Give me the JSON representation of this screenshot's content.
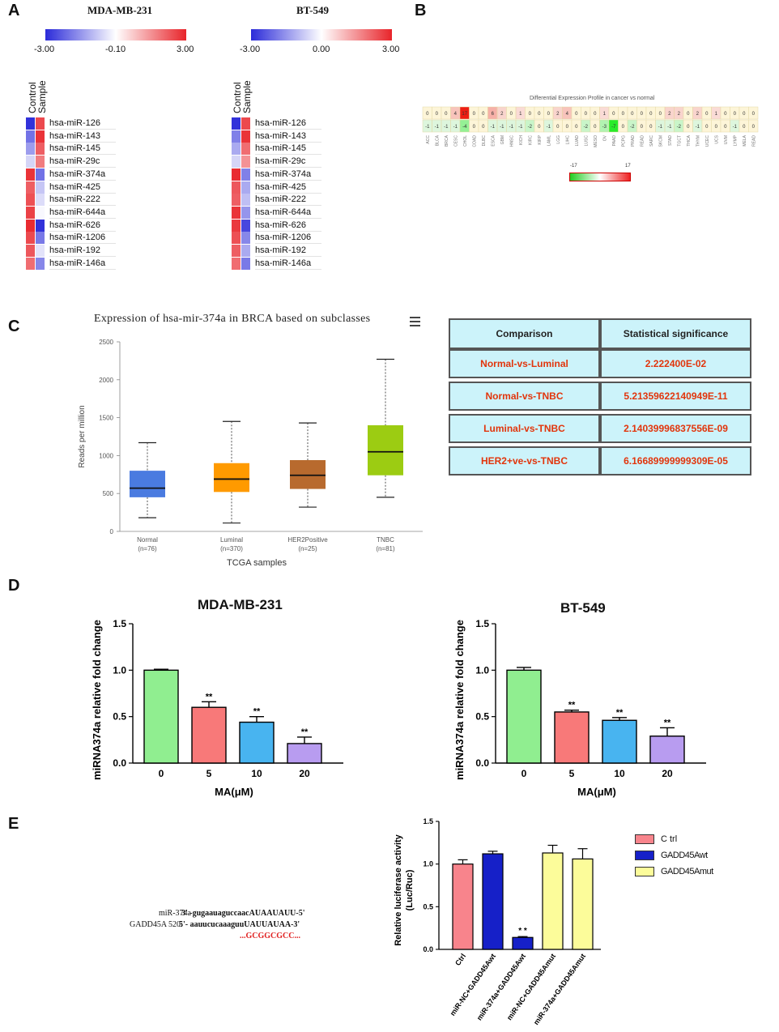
{
  "panels": {
    "A": "A",
    "B": "B",
    "C": "C",
    "D": "D",
    "E": "E"
  },
  "colors": {
    "heat_blue": "#2b2bd9",
    "heat_red": "#e8242a",
    "box_normal": "#4a7be0",
    "box_luminal": "#ff9a00",
    "box_her2": "#b86a2e",
    "box_tnbc": "#9ccc12",
    "bar_ctrl": "#90ee90",
    "bar_5": "#f87979",
    "bar_10": "#48b4f0",
    "bar_20": "#b89cf0",
    "e_ctrl": "#f8848c",
    "e_wt": "#1620c8",
    "e_mut": "#fcfc9a"
  },
  "heatmapA": {
    "left_title": "MDA-MB-231",
    "right_title": "BT-549",
    "left_scale": [
      "-3.00",
      "-0.10",
      "3.00"
    ],
    "right_scale": [
      "-3.00",
      "0.00",
      "3.00"
    ],
    "col_labels": [
      "Control",
      "Sample"
    ],
    "rows": [
      "hsa-miR-126",
      "hsa-miR-143",
      "hsa-miR-145",
      "hsa-miR-29c",
      "hsa-miR-374a",
      "hsa-miR-425",
      "hsa-miR-222",
      "hsa-miR-644a",
      "hsa-miR-626",
      "hsa-miR-1206",
      "hsa-miR-192",
      "hsa-miR-146a"
    ],
    "left_values": [
      [
        -2.9,
        2.5
      ],
      [
        -2.0,
        2.8
      ],
      [
        -1.4,
        2.2
      ],
      [
        -0.6,
        1.8
      ],
      [
        2.8,
        -2.0
      ],
      [
        2.2,
        -0.8
      ],
      [
        2.4,
        -0.5
      ],
      [
        2.6,
        -0.1
      ],
      [
        2.9,
        -2.9
      ],
      [
        2.5,
        -1.9
      ],
      [
        2.3,
        -0.4
      ],
      [
        2.0,
        -1.7
      ]
    ],
    "right_values": [
      [
        -2.9,
        2.5
      ],
      [
        -1.8,
        2.8
      ],
      [
        -1.2,
        2.0
      ],
      [
        -0.6,
        1.5
      ],
      [
        2.9,
        -1.8
      ],
      [
        2.3,
        -1.2
      ],
      [
        2.2,
        -0.9
      ],
      [
        2.8,
        -1.5
      ],
      [
        2.7,
        -2.6
      ],
      [
        2.4,
        -1.7
      ],
      [
        2.2,
        -1.2
      ],
      [
        2.0,
        -1.9
      ]
    ]
  },
  "panelB": {
    "title": "Differential Expression Profile in cancer vs normal",
    "row1": [
      "0",
      "0",
      "0",
      "4",
      "17",
      "0",
      "0",
      "6",
      "2",
      "0",
      "1",
      "0",
      "0",
      "0",
      "2",
      "4",
      "0",
      "0",
      "0",
      "1",
      "0",
      "0",
      "0",
      "0",
      "0",
      "0",
      "2",
      "2",
      "0",
      "2",
      "0",
      "1",
      "0",
      "0",
      "0",
      "0"
    ],
    "row2": [
      "-1",
      "-1",
      "-1",
      "-1",
      "-4",
      "0",
      "0",
      "-1",
      "-1",
      "-1",
      "-1",
      "-2",
      "0",
      "-1",
      "0",
      "0",
      "0",
      "-2",
      "0",
      "-3",
      "-7",
      "0",
      "-2",
      "0",
      "0",
      "-1",
      "-1",
      "-2",
      "0",
      "-1",
      "0",
      "0",
      "0",
      "-1",
      "0",
      "0"
    ],
    "cancers": [
      "ACC",
      "BLCA",
      "BRCA",
      "CESC",
      "CHOL",
      "COAD",
      "DLBC",
      "ESCA",
      "GBM",
      "HNSC",
      "KICH",
      "KIRC",
      "KIRP",
      "LAML",
      "LGG",
      "LIHC",
      "LUAD",
      "LUSC",
      "MESO",
      "OV",
      "PAAD",
      "PCPG",
      "PRAD",
      "READ",
      "SARC",
      "SKCM",
      "STAD",
      "TGCT",
      "THCA",
      "THYM",
      "UCEC",
      "UCS",
      "UVM",
      "LYMP",
      "MELA",
      "READ"
    ],
    "scale_min": "-17",
    "scale_max": "17"
  },
  "panelC": {
    "title": "Expression of hsa-mir-374a in BRCA based on subclasses",
    "menu_icon": "hamburger-menu-icon",
    "ylabel": "Reads per million",
    "xlabel": "TCGA samples",
    "yticks": [
      "0",
      "500",
      "1000",
      "1500",
      "2000",
      "2500"
    ],
    "groups": [
      "Normal",
      "Luminal",
      "HER2Positive",
      "TNBC"
    ],
    "counts": [
      "(n=76)",
      "(n=370)",
      "(n=25)",
      "(n=81)"
    ]
  },
  "stats": {
    "headers": [
      "Comparison",
      "Statistical significance"
    ],
    "rows": [
      [
        "Normal-vs-Luminal",
        "2.222400E-02"
      ],
      [
        "Normal-vs-TNBC",
        "5.21359622140949E-11"
      ],
      [
        "Luminal-vs-TNBC",
        "2.14039996837556E-09"
      ],
      [
        "HER2+ve-vs-TNBC",
        "6.16689999999309E-05"
      ]
    ]
  },
  "panelD": {
    "left_title": "MDA-MB-231",
    "right_title": "BT-549",
    "ylabel": "miRNA374a relative fold change",
    "xlabel": "MA(μM)",
    "yticks": [
      "0.0",
      "0.5",
      "1.0",
      "1.5"
    ],
    "categories": [
      "0",
      "5",
      "10",
      "20"
    ],
    "sig": "**"
  },
  "panelE": {
    "seq_line1_label": "miR-374a",
    "seq_line1": "3' -gugaauaguccaacAUAAUAUU-5'",
    "seq_line2_label": "GADD45A 520:",
    "seq_line2": "5'- aauucucaaaguuUAUUAUAA-3'",
    "seq_line3": "...GCGGCGCC...",
    "ylabel1": "Relative luciferase activity",
    "ylabel2": "(Luc/Ruc)",
    "yticks": [
      "0.0",
      "0.5",
      "1.0",
      "1.5"
    ],
    "categories": [
      "Ctrl",
      "miR-NC+GADD45Awt",
      "miR-374a+GADD45Awt",
      "miR-NC+GADD45Amut",
      "miR-374a+GADD45Amut"
    ],
    "legend": [
      "C trl",
      "GADD45Awt",
      "GADD45Amut"
    ],
    "sig": "* *"
  },
  "chart_data": [
    {
      "type": "box",
      "title": "Expression of hsa-mir-374a in BRCA based on subclasses",
      "xlabel": "TCGA samples",
      "ylabel": "Reads per million",
      "ylim": [
        0,
        2500
      ],
      "categories": [
        "Normal",
        "Luminal",
        "HER2Positive",
        "TNBC"
      ],
      "series": [
        {
          "name": "Normal",
          "min": 180,
          "q1": 450,
          "median": 570,
          "q3": 800,
          "max": 1170
        },
        {
          "name": "Luminal",
          "min": 110,
          "q1": 520,
          "median": 690,
          "q3": 900,
          "max": 1450
        },
        {
          "name": "HER2Positive",
          "min": 320,
          "q1": 560,
          "median": 740,
          "q3": 940,
          "max": 1430
        },
        {
          "name": "TNBC",
          "min": 450,
          "q1": 740,
          "median": 1050,
          "q3": 1400,
          "max": 2270
        }
      ]
    },
    {
      "type": "bar",
      "title": "MDA-MB-231",
      "xlabel": "MA(μM)",
      "ylabel": "miRNA374a relative fold change",
      "ylim": [
        0,
        1.5
      ],
      "categories": [
        "0",
        "5",
        "10",
        "20"
      ],
      "values": [
        1.0,
        0.6,
        0.44,
        0.21
      ],
      "errors": [
        0.01,
        0.06,
        0.06,
        0.07
      ]
    },
    {
      "type": "bar",
      "title": "BT-549",
      "xlabel": "MA(μM)",
      "ylabel": "miRNA374a relative fold change",
      "ylim": [
        0,
        1.5
      ],
      "categories": [
        "0",
        "5",
        "10",
        "20"
      ],
      "values": [
        1.0,
        0.55,
        0.46,
        0.29
      ],
      "errors": [
        0.03,
        0.02,
        0.03,
        0.09
      ]
    },
    {
      "type": "bar",
      "title": "",
      "xlabel": "",
      "ylabel": "Relative luciferase activity (Luc/Ruc)",
      "ylim": [
        0,
        1.5
      ],
      "categories": [
        "Ctrl",
        "miR-NC+GADD45Awt",
        "miR-374a+GADD45Awt",
        "miR-NC+GADD45Amut",
        "miR-374a+GADD45Amut"
      ],
      "values": [
        1.0,
        1.12,
        0.14,
        1.13,
        1.06
      ],
      "errors": [
        0.05,
        0.03,
        0.01,
        0.09,
        0.12
      ],
      "groups": [
        "C trl",
        "GADD45Awt",
        "GADD45Awt",
        "GADD45Amut",
        "GADD45Amut"
      ]
    }
  ]
}
